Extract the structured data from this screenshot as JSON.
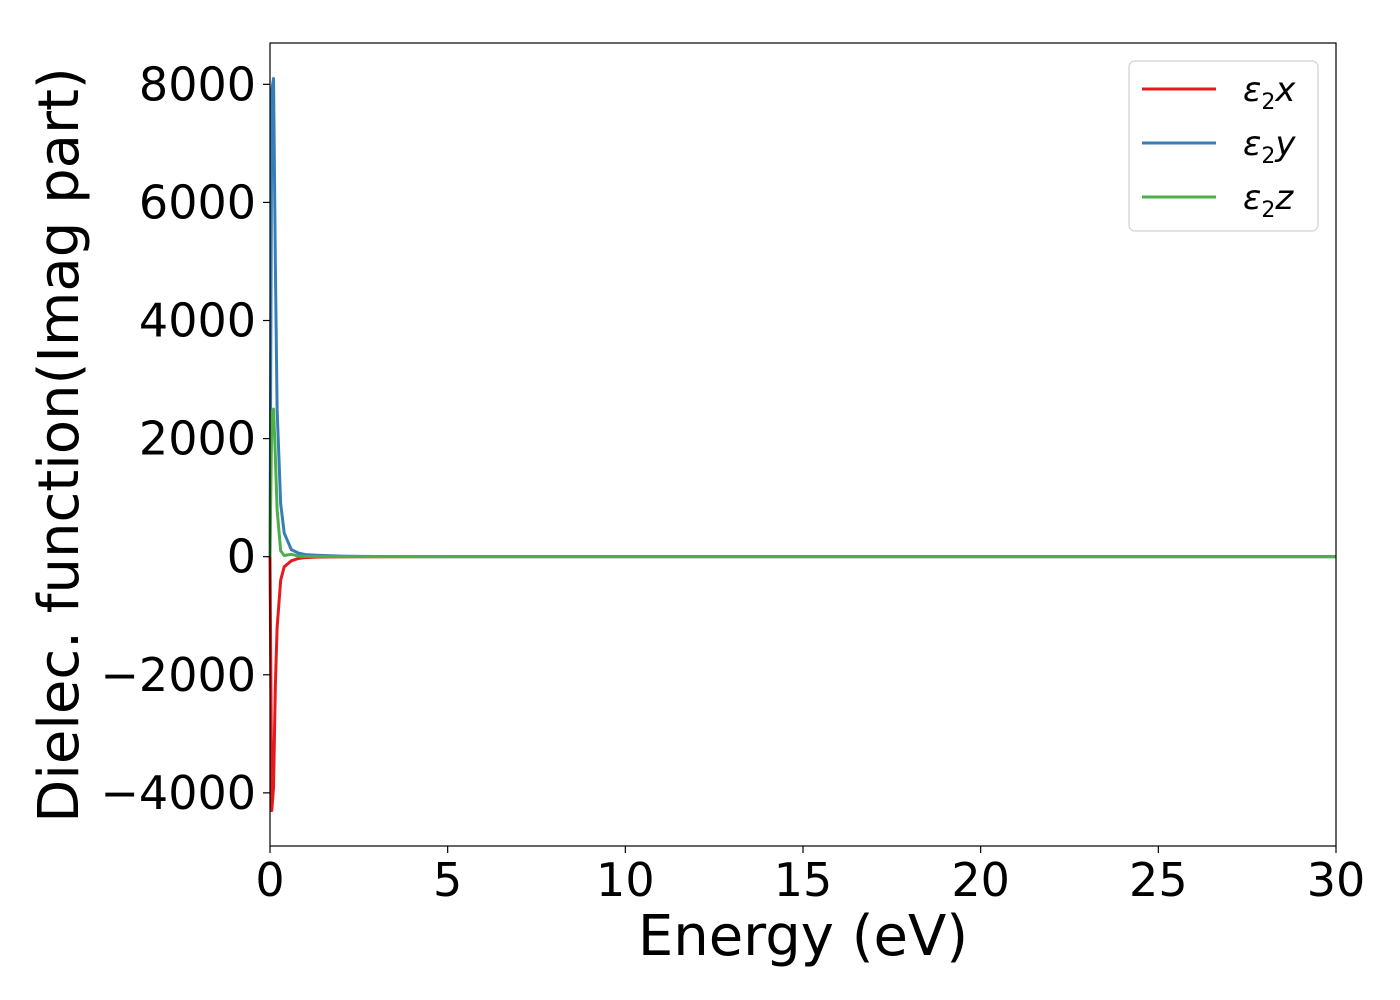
{
  "chart_data": {
    "type": "line",
    "title": "",
    "xlabel": "Energy (eV)",
    "ylabel": "Dielec. function(Imag part)",
    "xlim": [
      0,
      30
    ],
    "ylim": [
      -4900,
      8700
    ],
    "xticks": [
      0,
      5,
      10,
      15,
      20,
      25,
      30
    ],
    "xtick_labels": [
      "0",
      "5",
      "10",
      "15",
      "20",
      "25",
      "30"
    ],
    "yticks": [
      -4000,
      -2000,
      0,
      2000,
      4000,
      6000,
      8000
    ],
    "ytick_labels": [
      "−4000",
      "−2000",
      "0",
      "2000",
      "4000",
      "6000",
      "8000"
    ],
    "grid": false,
    "legend_position": "top-right",
    "series": [
      {
        "name": "ε2x",
        "legend_symbol": "ε",
        "legend_sub": "2",
        "legend_var": "x",
        "color": "#e41a1c",
        "x": [
          0.0,
          0.05,
          0.1,
          0.15,
          0.2,
          0.3,
          0.4,
          0.6,
          0.8,
          1.0,
          1.3,
          1.6,
          2.0,
          2.5,
          3.0,
          5.0,
          10.0,
          15.0,
          20.0,
          25.0,
          30.0
        ],
        "y": [
          0,
          -4300,
          -3900,
          -2200,
          -1200,
          -400,
          -170,
          -70,
          -30,
          -15,
          -8,
          -5,
          -3,
          -2,
          -1,
          0,
          0,
          0,
          0,
          0,
          0
        ]
      },
      {
        "name": "ε2y",
        "legend_symbol": "ε",
        "legend_sub": "2",
        "legend_var": "y",
        "color": "#377eb8",
        "x": [
          0.0,
          0.05,
          0.1,
          0.15,
          0.2,
          0.3,
          0.4,
          0.6,
          0.8,
          1.0,
          1.3,
          1.6,
          2.0,
          2.5,
          3.0,
          5.0,
          10.0,
          15.0,
          20.0,
          25.0,
          30.0
        ],
        "y": [
          0,
          7900,
          8100,
          5000,
          2500,
          900,
          400,
          120,
          60,
          35,
          25,
          18,
          10,
          5,
          3,
          0,
          0,
          0,
          0,
          0,
          0
        ]
      },
      {
        "name": "ε2z",
        "legend_symbol": "ε",
        "legend_sub": "2",
        "legend_var": "z",
        "color": "#4daf4a",
        "x": [
          0.0,
          0.05,
          0.1,
          0.15,
          0.2,
          0.3,
          0.4,
          0.6,
          0.8,
          1.0,
          1.3,
          1.6,
          2.0,
          2.5,
          3.0,
          5.0,
          10.0,
          15.0,
          20.0,
          25.0,
          30.0
        ],
        "y": [
          0,
          2450,
          2500,
          1700,
          800,
          100,
          20,
          40,
          10,
          5,
          3,
          2,
          1,
          0,
          0,
          0,
          0,
          0,
          0,
          0,
          0
        ]
      }
    ]
  }
}
